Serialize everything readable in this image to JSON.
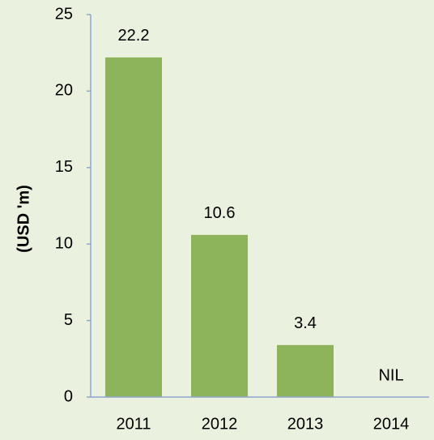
{
  "chart_data": {
    "type": "bar",
    "y_label": "(USD 'm)",
    "categories": [
      "2011",
      "2012",
      "2013",
      "2014"
    ],
    "values": [
      22.2,
      10.6,
      3.4,
      0
    ],
    "value_labels": [
      "22.2",
      "10.6",
      "3.4",
      "NIL"
    ],
    "color": "#8db45a",
    "ylim": [
      0,
      25
    ],
    "yticks": [
      0,
      5,
      10,
      15,
      20,
      25
    ],
    "grid": false
  }
}
